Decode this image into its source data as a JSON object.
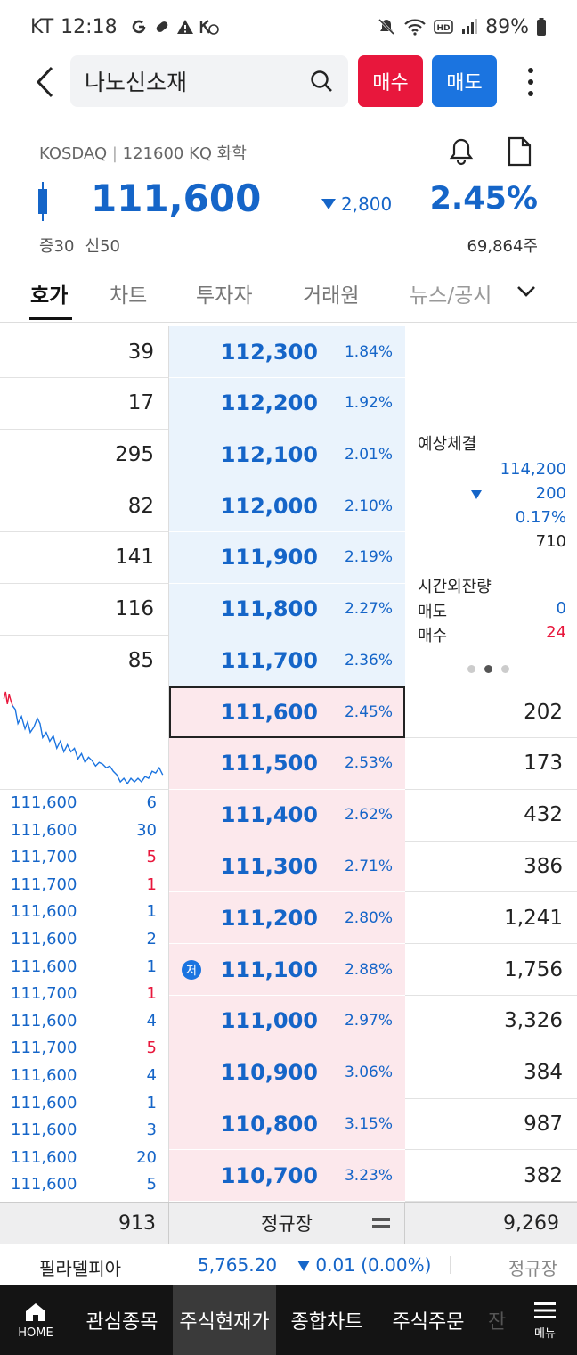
{
  "status_bar": {
    "carrier": "KT",
    "time": "12:18",
    "battery": "89%"
  },
  "header": {
    "search_value": "나노신소재",
    "buy_label": "매수",
    "sell_label": "매도"
  },
  "quote": {
    "market": "KOSDAQ",
    "code_info": "121600 KQ 화학",
    "price": "111,600",
    "change": "2,800",
    "change_pct": "2.45%",
    "margin": "증30",
    "credit": "신50",
    "volume": "69,864주"
  },
  "tabs": [
    {
      "label": "호가"
    },
    {
      "label": "차트"
    },
    {
      "label": "투자자"
    },
    {
      "label": "거래원"
    },
    {
      "label": "뉴스/공시"
    }
  ],
  "asks": [
    {
      "qty": "39",
      "price": "112,300",
      "rate": "1.84%"
    },
    {
      "qty": "17",
      "price": "112,200",
      "rate": "1.92%"
    },
    {
      "qty": "295",
      "price": "112,100",
      "rate": "2.01%"
    },
    {
      "qty": "82",
      "price": "112,000",
      "rate": "2.10%"
    },
    {
      "qty": "141",
      "price": "111,900",
      "rate": "2.19%"
    },
    {
      "qty": "116",
      "price": "111,800",
      "rate": "2.27%"
    },
    {
      "qty": "85",
      "price": "111,700",
      "rate": "2.36%"
    }
  ],
  "bids": [
    {
      "price": "111,600",
      "rate": "2.45%",
      "qty": "202"
    },
    {
      "price": "111,500",
      "rate": "2.53%",
      "qty": "173"
    },
    {
      "price": "111,400",
      "rate": "2.62%",
      "qty": "432"
    },
    {
      "price": "111,300",
      "rate": "2.71%",
      "qty": "386"
    },
    {
      "price": "111,200",
      "rate": "2.80%",
      "qty": "1,241"
    },
    {
      "price": "111,100",
      "rate": "2.88%",
      "qty": "1,756"
    },
    {
      "price": "111,000",
      "rate": "2.97%",
      "qty": "3,326"
    },
    {
      "price": "110,900",
      "rate": "3.06%",
      "qty": "384"
    },
    {
      "price": "110,800",
      "rate": "3.15%",
      "qty": "987"
    },
    {
      "price": "110,700",
      "rate": "3.23%",
      "qty": "382"
    }
  ],
  "low_badge": "저",
  "expected": {
    "title": "예상체결",
    "price": "114,200",
    "change": "200",
    "rate": "0.17%",
    "qty": "710",
    "after_hours_title": "시간외잔량",
    "sell_label": "매도",
    "sell_value": "0",
    "buy_label": "매수",
    "buy_value": "24"
  },
  "ticks": [
    {
      "price": "111,600",
      "qty": "6",
      "side": "sell"
    },
    {
      "price": "111,600",
      "qty": "30",
      "side": "sell"
    },
    {
      "price": "111,700",
      "qty": "5",
      "side": "buy"
    },
    {
      "price": "111,700",
      "qty": "1",
      "side": "buy"
    },
    {
      "price": "111,600",
      "qty": "1",
      "side": "sell"
    },
    {
      "price": "111,600",
      "qty": "2",
      "side": "sell"
    },
    {
      "price": "111,600",
      "qty": "1",
      "side": "sell"
    },
    {
      "price": "111,700",
      "qty": "1",
      "side": "buy"
    },
    {
      "price": "111,600",
      "qty": "4",
      "side": "sell"
    },
    {
      "price": "111,700",
      "qty": "5",
      "side": "buy"
    },
    {
      "price": "111,600",
      "qty": "4",
      "side": "sell"
    },
    {
      "price": "111,600",
      "qty": "1",
      "side": "sell"
    },
    {
      "price": "111,600",
      "qty": "3",
      "side": "sell"
    },
    {
      "price": "111,600",
      "qty": "20",
      "side": "sell"
    },
    {
      "price": "111,600",
      "qty": "5",
      "side": "sell"
    }
  ],
  "summary": {
    "ask_total": "913",
    "session": "정규장",
    "bid_total": "9,269"
  },
  "ticker": {
    "name": "필라델피아",
    "value": "5,765.20",
    "change": "0.01 (0.00%)",
    "state": "정규장"
  },
  "nav": {
    "home": "HOME",
    "items": [
      "관심종목",
      "주식현재가",
      "종합차트",
      "주식주문"
    ],
    "faded": "잔",
    "menu": "메뉴"
  },
  "colors": {
    "up": "#e8173c",
    "down": "#1565c8",
    "ask_bg": "#eaf3fc",
    "bid_bg": "#fce8ec"
  }
}
